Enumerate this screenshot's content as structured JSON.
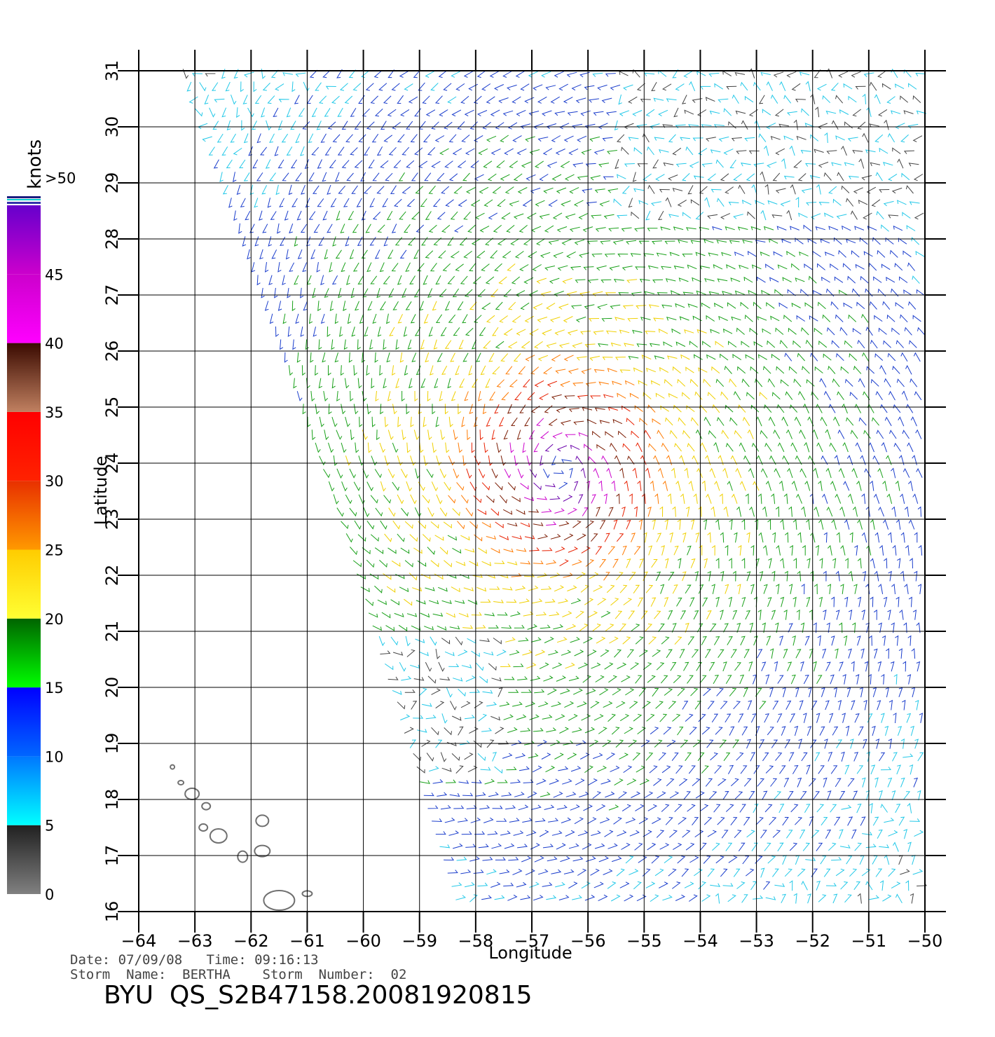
{
  "map": {
    "x_axis_label": "Longitude",
    "y_axis_label": "Latitude",
    "lon_range": [
      -64,
      -50
    ],
    "lat_range": [
      16,
      31
    ],
    "lon_ticks": [
      -64,
      -63,
      -62,
      -61,
      -60,
      -59,
      -58,
      -57,
      -56,
      -55,
      -54,
      -53,
      -52,
      -51,
      -50
    ],
    "lat_ticks": [
      16,
      17,
      18,
      19,
      20,
      21,
      22,
      23,
      24,
      25,
      26,
      27,
      28,
      29,
      30,
      31
    ],
    "lon_tick_labels": [
      "−64",
      "−63",
      "−62",
      "−61",
      "−60",
      "−59",
      "−58",
      "−57",
      "−56",
      "−55",
      "−54",
      "−53",
      "−52",
      "−51",
      "−50"
    ],
    "lat_tick_labels": [
      "16",
      "17",
      "18",
      "19",
      "20",
      "21",
      "22",
      "23",
      "24",
      "25",
      "26",
      "27",
      "28",
      "29",
      "30",
      "31"
    ],
    "grid": true,
    "storm_center": {
      "lon": -56.5,
      "lat": 23.9
    },
    "swath_left_edge": [
      [
        -63.3,
        31
      ],
      [
        -60.3,
        22.5
      ],
      [
        -58.3,
        16
      ]
    ],
    "islands_color": "#707070"
  },
  "legend": {
    "title": "knots",
    "labels": [
      ">50",
      "45",
      "40",
      "35",
      "30",
      "25",
      "20",
      "15",
      "10",
      "5",
      "0"
    ],
    "bands": [
      {
        "from": 0,
        "to": 5,
        "color_top": "#202020",
        "color_bottom": "#808080"
      },
      {
        "from": 5,
        "to": 10,
        "color_top": "#0077ff",
        "color_bottom": "#00ffff"
      },
      {
        "from": 10,
        "to": 15,
        "color_top": "#0000ff",
        "color_bottom": "#0066ff"
      },
      {
        "from": 15,
        "to": 20,
        "color_top": "#006400",
        "color_bottom": "#00ff00"
      },
      {
        "from": 20,
        "to": 25,
        "color_top": "#ffcc00",
        "color_bottom": "#ffff33"
      },
      {
        "from": 25,
        "to": 30,
        "color_top": "#e83000",
        "color_bottom": "#ff9900"
      },
      {
        "from": 30,
        "to": 35,
        "color_top": "#ff0000",
        "color_bottom": "#ff2200"
      },
      {
        "from": 35,
        "to": 40,
        "color_top": "#3a0a00",
        "color_bottom": "#c08060"
      },
      {
        "from": 40,
        "to": 45,
        "color_top": "#cc00cc",
        "color_bottom": "#ff00ff"
      },
      {
        "from": 45,
        "to": 50,
        "color_top": "#6600cc",
        "color_bottom": "#cc00cc"
      }
    ]
  },
  "meta": {
    "date_line": "Date: 07/09/08   Time: 09:16:13",
    "storm_line": "Storm  Name:  BERTHA    Storm  Number:  02",
    "product_title": "BYU  QS_S2B47158.20081920815"
  }
}
